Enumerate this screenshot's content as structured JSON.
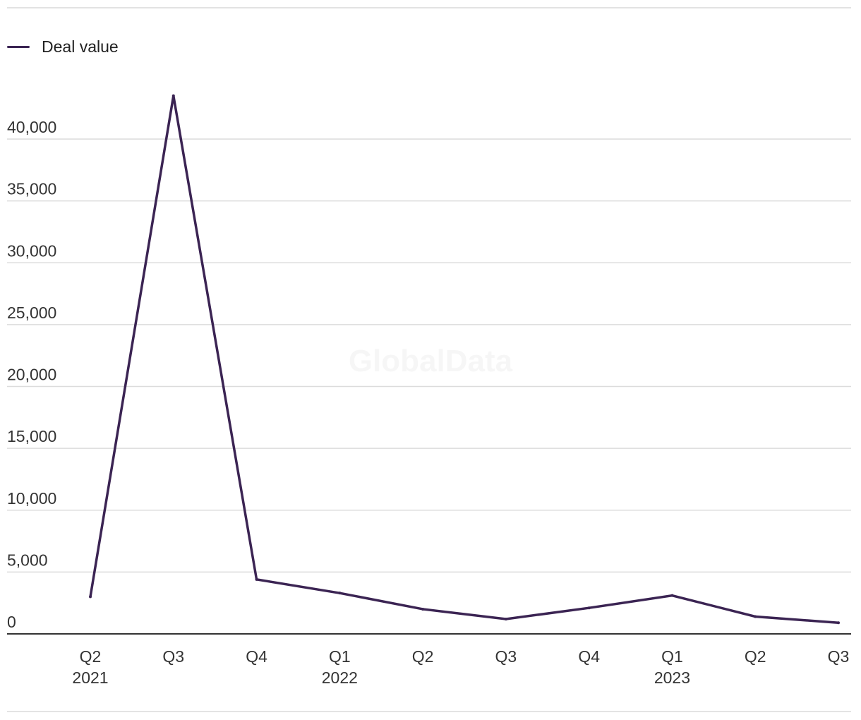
{
  "chart_data": {
    "type": "line",
    "watermark": "GlobalData",
    "title": "",
    "xlabel": "",
    "ylabel": "",
    "categories": [
      {
        "label": "Q2",
        "year": "2021"
      },
      {
        "label": "Q3",
        "year": ""
      },
      {
        "label": "Q4",
        "year": ""
      },
      {
        "label": "Q1",
        "year": "2022"
      },
      {
        "label": "Q2",
        "year": ""
      },
      {
        "label": "Q3",
        "year": ""
      },
      {
        "label": "Q4",
        "year": ""
      },
      {
        "label": "Q1",
        "year": "2023"
      },
      {
        "label": "Q2",
        "year": ""
      },
      {
        "label": "Q3",
        "year": ""
      }
    ],
    "series": [
      {
        "name": "Deal value",
        "color": "#3b2453",
        "values": [
          3000,
          43500,
          4400,
          3300,
          2000,
          1200,
          2100,
          3100,
          1400,
          900
        ]
      }
    ],
    "ylim": [
      0,
      40000
    ],
    "yticks": [
      "0",
      "5,000",
      "10,000",
      "15,000",
      "20,000",
      "25,000",
      "30,000",
      "35,000",
      "40,000"
    ],
    "grid": true,
    "legend_position": "top-left",
    "colors": {
      "gridline": "#dcdcdc",
      "axis": "#333333"
    }
  }
}
